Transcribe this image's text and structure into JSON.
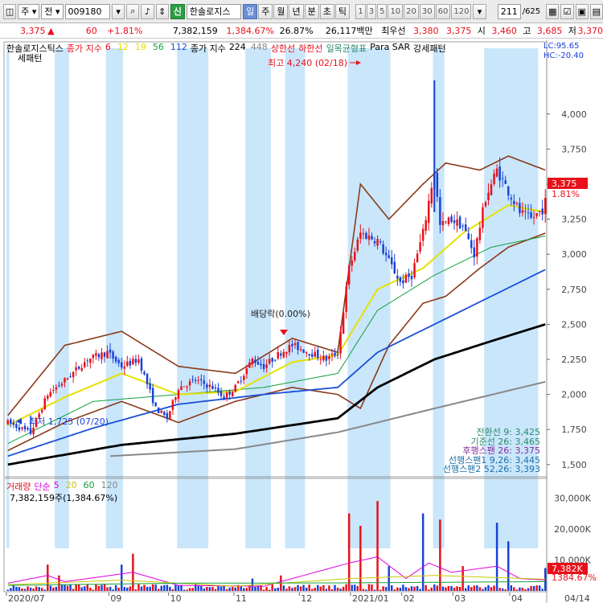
{
  "toolbar": {
    "mode": "주",
    "prev": "전",
    "code": "009180",
    "badge": "신",
    "name": "한솔로지스",
    "periods": [
      "일",
      "주",
      "월",
      "년",
      "분",
      "초",
      "틱"
    ],
    "active_period": "일",
    "intervals": [
      "1",
      "3",
      "5",
      "10",
      "20",
      "30",
      "60",
      "120"
    ],
    "page": "211",
    "page_total": "/625"
  },
  "quote": {
    "price": "3,375",
    "arrow": "▲",
    "change": "60",
    "change_pct": "+1.81%",
    "volume": "7,382,159",
    "volume_pct": "1,384.67%",
    "turnover": "26.87%",
    "amount": "26,117백만",
    "best_label": "최우선",
    "best_ask": "3,380",
    "best_bid": "3,375",
    "open_label": "시",
    "open": "3,460",
    "high_label": "고",
    "high": "3,685",
    "low_label": "저",
    "low": "3,370"
  },
  "legend": {
    "price_name": "한솔로지스틱스",
    "ma_label": "종가 지수",
    "ma_periods": [
      {
        "p": "6",
        "color": "#e8101a"
      },
      {
        "p": "12",
        "color": "#e8e000"
      },
      {
        "p": "19",
        "color": "#e8e000"
      },
      {
        "p": "56",
        "color": "#14a03c"
      },
      {
        "p": "112",
        "color": "#1a4fd8"
      }
    ],
    "ma2_label": "종가 지수",
    "ma2_periods": [
      {
        "p": "224",
        "color": "#000000"
      },
      {
        "p": "448",
        "color": "#888888"
      }
    ],
    "upper": "상한선",
    "lower": "하한선",
    "ichimoku": "일목균형표",
    "parasar": "Para SAR",
    "strong": "강세패턴",
    "lc": "LC:95.65",
    "hc": "HC:-20.40"
  },
  "annotations": {
    "high": "최고 4,240 (02/18)",
    "low": "최저 1,725 (07/20)",
    "dividend": "배당락(0.00%)",
    "price_tag": "3,375",
    "pct_tag": "1.81%"
  },
  "ichimoku_values": [
    {
      "label": "전환선 9: 3,425",
      "color": "#2a8a6a"
    },
    {
      "label": "기준선 26: 3,465",
      "color": "#2a8a6a"
    },
    {
      "label": "후행스팬 26: 3,375",
      "color": "#8a2aa0"
    },
    {
      "label": "선행스팬1 9,26: 3,445",
      "color": "#1d6ea8"
    },
    {
      "label": "선행스팬2 52,26: 3,393",
      "color": "#1d6ea8"
    }
  ],
  "volume_legend": {
    "label": "거래량",
    "ma_label": "단순",
    "periods": [
      {
        "p": "5",
        "color": "#e000e0"
      },
      {
        "p": "20",
        "color": "#c8c800"
      },
      {
        "p": "60",
        "color": "#14a03c"
      },
      {
        "p": "120",
        "color": "#888888"
      }
    ],
    "sub": "7,382,159주(1,384.67%)",
    "vol_tag": "7,382K",
    "vol_pct_tag": "1384.67%"
  },
  "chart_data": {
    "type": "candlestick",
    "y_ticks": [
      "4,000",
      "3,750",
      "3,500",
      "3,250",
      "3,000",
      "2,750",
      "2,500",
      "2,250",
      "2,000",
      "1,750",
      "1,500"
    ],
    "y_tick_values": [
      4000,
      3750,
      3500,
      3250,
      3000,
      2750,
      2500,
      2250,
      2000,
      1750,
      1500
    ],
    "ylim": [
      1430,
      4400
    ],
    "vol_ticks": [
      "30,000K",
      "20,000K",
      "10,000K"
    ],
    "vol_tick_values": [
      30000,
      20000,
      10000
    ],
    "vol_ylim": [
      0,
      35000
    ],
    "x_ticks": [
      "2020/07",
      "09",
      "10",
      "11",
      "12",
      "2021/01",
      "02",
      "03",
      "04",
      "04/14"
    ],
    "n_bars": 190,
    "series_close_anchor": [
      [
        0,
        1800
      ],
      [
        8,
        1725
      ],
      [
        14,
        2000
      ],
      [
        20,
        2100
      ],
      [
        28,
        2250
      ],
      [
        35,
        2300
      ],
      [
        40,
        2200
      ],
      [
        46,
        2250
      ],
      [
        52,
        1900
      ],
      [
        56,
        1830
      ],
      [
        60,
        2050
      ],
      [
        66,
        2100
      ],
      [
        72,
        2050
      ],
      [
        76,
        1980
      ],
      [
        80,
        2050
      ],
      [
        86,
        2250
      ],
      [
        90,
        2200
      ],
      [
        96,
        2300
      ],
      [
        100,
        2350
      ],
      [
        106,
        2300
      ],
      [
        112,
        2250
      ],
      [
        116,
        2300
      ],
      [
        120,
        2900
      ],
      [
        124,
        3150
      ],
      [
        130,
        3100
      ],
      [
        134,
        2950
      ],
      [
        138,
        2800
      ],
      [
        142,
        2850
      ],
      [
        146,
        3150
      ],
      [
        150,
        3600
      ],
      [
        152,
        3200
      ],
      [
        156,
        3250
      ],
      [
        160,
        3200
      ],
      [
        164,
        3000
      ],
      [
        168,
        3400
      ],
      [
        172,
        3600
      ],
      [
        176,
        3450
      ],
      [
        180,
        3300
      ],
      [
        184,
        3250
      ],
      [
        188,
        3320
      ],
      [
        189,
        3375
      ]
    ],
    "ma_lines": [
      {
        "name": "224",
        "color": "#000000",
        "anchor": [
          [
            0,
            1500
          ],
          [
            40,
            1640
          ],
          [
            80,
            1720
          ],
          [
            116,
            1830
          ],
          [
            130,
            2050
          ],
          [
            150,
            2250
          ],
          [
            170,
            2380
          ],
          [
            189,
            2500
          ]
        ]
      },
      {
        "name": "448",
        "color": "#888888",
        "anchor": [
          [
            36,
            1560
          ],
          [
            80,
            1610
          ],
          [
            116,
            1730
          ],
          [
            150,
            1900
          ],
          [
            189,
            2090
          ]
        ]
      },
      {
        "name": "112",
        "color": "#1a4fd8",
        "anchor": [
          [
            0,
            1560
          ],
          [
            30,
            1760
          ],
          [
            60,
            1930
          ],
          [
            90,
            2000
          ],
          [
            116,
            2050
          ],
          [
            130,
            2300
          ],
          [
            150,
            2500
          ],
          [
            170,
            2700
          ],
          [
            189,
            2890
          ]
        ]
      },
      {
        "name": "56",
        "color": "#14a03c",
        "anchor": [
          [
            0,
            1650
          ],
          [
            30,
            1950
          ],
          [
            60,
            2000
          ],
          [
            90,
            2050
          ],
          [
            116,
            2150
          ],
          [
            130,
            2600
          ],
          [
            150,
            2850
          ],
          [
            170,
            3050
          ],
          [
            189,
            3130
          ]
        ]
      },
      {
        "name": "19",
        "color": "#e8e000",
        "anchor": [
          [
            0,
            1780
          ],
          [
            20,
            1980
          ],
          [
            40,
            2150
          ],
          [
            60,
            2000
          ],
          [
            80,
            2020
          ],
          [
            100,
            2230
          ],
          [
            116,
            2280
          ],
          [
            130,
            2750
          ],
          [
            146,
            2900
          ],
          [
            160,
            3150
          ],
          [
            176,
            3350
          ],
          [
            189,
            3300
          ]
        ]
      }
    ],
    "bollinger_upper": [
      [
        0,
        1850
      ],
      [
        20,
        2350
      ],
      [
        40,
        2450
      ],
      [
        60,
        2200
      ],
      [
        80,
        2150
      ],
      [
        100,
        2400
      ],
      [
        116,
        2300
      ],
      [
        124,
        3500
      ],
      [
        134,
        3250
      ],
      [
        146,
        3500
      ],
      [
        154,
        3650
      ],
      [
        166,
        3600
      ],
      [
        176,
        3700
      ],
      [
        189,
        3600
      ]
    ],
    "bollinger_lower": [
      [
        0,
        1600
      ],
      [
        20,
        1800
      ],
      [
        40,
        1950
      ],
      [
        60,
        1800
      ],
      [
        80,
        1950
      ],
      [
        100,
        2050
      ],
      [
        116,
        2000
      ],
      [
        124,
        1900
      ],
      [
        134,
        2350
      ],
      [
        146,
        2650
      ],
      [
        154,
        2700
      ],
      [
        166,
        2900
      ],
      [
        176,
        3050
      ],
      [
        189,
        3150
      ]
    ],
    "bands_light_blue": [
      [
        0,
        1
      ],
      [
        17,
        22
      ],
      [
        35,
        41
      ],
      [
        60,
        71
      ],
      [
        84,
        93
      ],
      [
        98,
        105
      ],
      [
        120,
        135
      ],
      [
        150,
        154
      ],
      [
        168,
        187
      ]
    ],
    "volume_spikes": [
      [
        14,
        8500
      ],
      [
        18,
        5000
      ],
      [
        40,
        8500
      ],
      [
        44,
        12000
      ],
      [
        86,
        4000
      ],
      [
        96,
        5000
      ],
      [
        120,
        25000
      ],
      [
        124,
        21000
      ],
      [
        130,
        29000
      ],
      [
        134,
        8000
      ],
      [
        146,
        25000
      ],
      [
        152,
        23000
      ],
      [
        160,
        8000
      ],
      [
        172,
        22000
      ],
      [
        176,
        16000
      ],
      [
        189,
        7382
      ]
    ]
  }
}
